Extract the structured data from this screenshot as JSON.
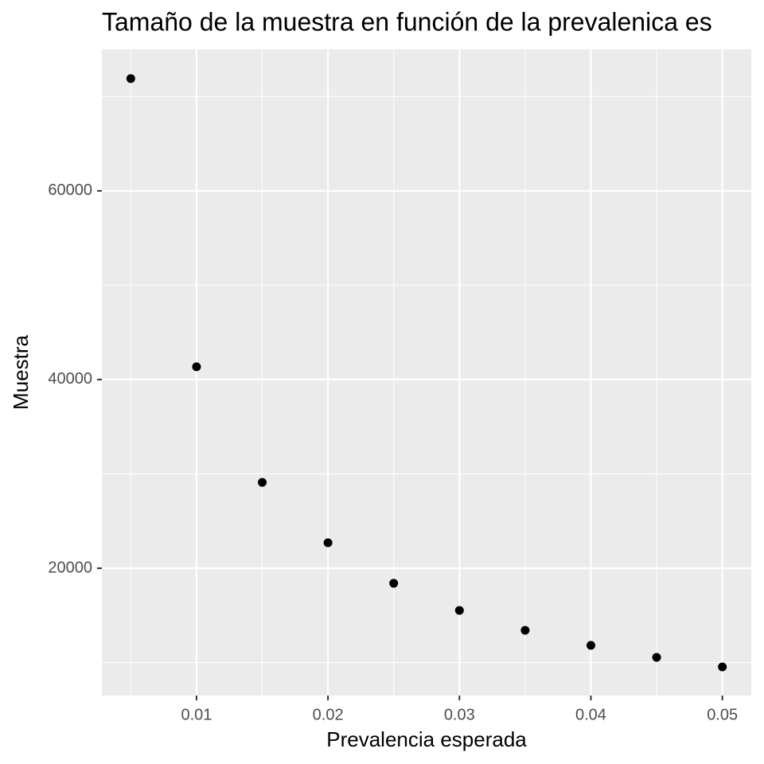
{
  "chart_data": {
    "type": "scatter",
    "title": "Tamaño de la muestra en función de la prevalenica es",
    "x_label": "Prevalencia esperada",
    "y_label": "Muestra",
    "x": [
      0.005,
      0.01,
      0.015,
      0.02,
      0.025,
      0.03,
      0.035,
      0.04,
      0.045,
      0.05
    ],
    "values": [
      71900,
      41350,
      29100,
      22700,
      18400,
      15530,
      13420,
      11820,
      10550,
      9540
    ],
    "color": "#000000",
    "xlim": [
      0.0028,
      0.0522
    ],
    "ylim": [
      6500,
      75000
    ],
    "xticks": [
      0.01,
      0.02,
      0.03,
      0.04,
      0.05
    ],
    "yticks": [
      20000,
      40000,
      60000
    ],
    "x_minor_grid": [
      0.005,
      0.015,
      0.025,
      0.035,
      0.045
    ],
    "y_minor_grid": [
      10000,
      30000,
      50000,
      70000
    ],
    "grid": true
  }
}
